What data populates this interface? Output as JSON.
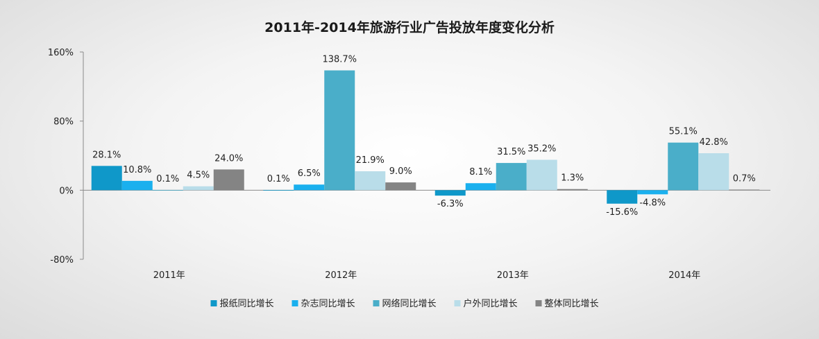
{
  "chart_data": {
    "type": "bar",
    "title": "2011年-2014年旅游行业广告投放年度变化分析",
    "categories": [
      "2011年",
      "2012年",
      "2013年",
      "2014年"
    ],
    "ylim": [
      -80,
      160
    ],
    "yticks": [
      -80,
      0,
      80,
      160
    ],
    "tick_suffix": "%",
    "grid": false,
    "legend_position": "bottom",
    "series": [
      {
        "name": "报纸同比增长",
        "color": "#0f98c9",
        "values": [
          28.1,
          0.1,
          -6.3,
          -15.6
        ]
      },
      {
        "name": "杂志同比增长",
        "color": "#1ab0ee",
        "values": [
          10.8,
          6.5,
          8.1,
          -4.8
        ]
      },
      {
        "name": "网络同比增长",
        "color": "#4aaec9",
        "values": [
          0.1,
          138.7,
          31.5,
          55.1
        ]
      },
      {
        "name": "户外同比增长",
        "color": "#b9dde9",
        "values": [
          4.5,
          21.9,
          35.2,
          42.8
        ]
      },
      {
        "name": "整体同比增长",
        "color": "#848484",
        "values": [
          24.0,
          9.0,
          1.3,
          0.7
        ]
      }
    ],
    "data_labels": [
      [
        "28.1%",
        "10.8%",
        "0.1%",
        "4.5%",
        "24.0%"
      ],
      [
        "0.1%",
        "6.5%",
        "138.7%",
        "21.9%",
        "9.0%"
      ],
      [
        "-6.3%",
        "8.1%",
        "31.5%",
        "35.2%",
        "1.3%"
      ],
      [
        "-15.6%",
        "-4.8%",
        "55.1%",
        "42.8%",
        "0.7%"
      ]
    ]
  }
}
